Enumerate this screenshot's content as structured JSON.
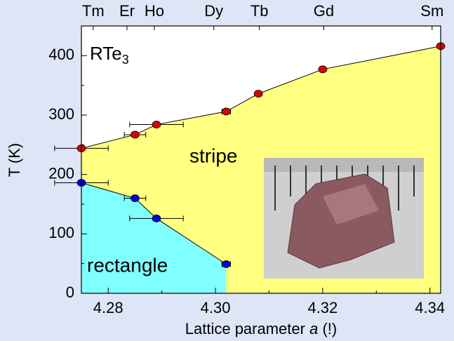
{
  "chart_data": {
    "type": "phase",
    "annotation": {
      "text": "RTe",
      "sub": "3"
    },
    "region_labels": [
      "stripe",
      "rectangle"
    ],
    "x_label": [
      "Lattice parameter ",
      "a",
      " (!)"
    ],
    "y_label": "T (K)",
    "xlim": [
      4.275,
      4.342
    ],
    "ylim": [
      0,
      450
    ],
    "xticks": [
      {
        "value": 4.28,
        "label": "4.28"
      },
      {
        "value": 4.3,
        "label": "4.30"
      },
      {
        "value": 4.32,
        "label": "4.32"
      },
      {
        "value": 4.34,
        "label": "4.34"
      }
    ],
    "xminor": [
      4.29,
      4.31,
      4.33
    ],
    "yticks": [
      0,
      100,
      200,
      300,
      400
    ],
    "yminor": [
      50,
      150,
      250,
      350
    ],
    "x2ticks": [
      {
        "value": 4.2772,
        "label": "Tm"
      },
      {
        "value": 4.2835,
        "label": "Er"
      },
      {
        "value": 4.2886,
        "label": "Ho"
      },
      {
        "value": 4.2997,
        "label": "Dy"
      },
      {
        "value": 4.3082,
        "label": "Tb"
      },
      {
        "value": 4.3202,
        "label": "Gd"
      },
      {
        "value": 4.3404,
        "label": "Sm"
      }
    ],
    "series": [
      {
        "color": "#dd0000",
        "fill": "#ffff80",
        "x": [
          4.275,
          4.285,
          4.289,
          4.302,
          4.308,
          4.32,
          4.342
        ],
        "values": [
          244,
          267,
          284,
          306,
          336,
          377,
          416
        ],
        "x_errors": [
          0.005,
          0.002,
          0.005,
          0.0008,
          0.0005,
          0.0005,
          null
        ]
      },
      {
        "color": "#0000dd",
        "fill": "#80ffff",
        "x": [
          4.275,
          4.285,
          4.289,
          4.302
        ],
        "values": [
          186,
          160,
          126,
          49
        ],
        "x_errors": [
          0.005,
          0.002,
          0.005,
          0.0008
        ]
      }
    ]
  }
}
